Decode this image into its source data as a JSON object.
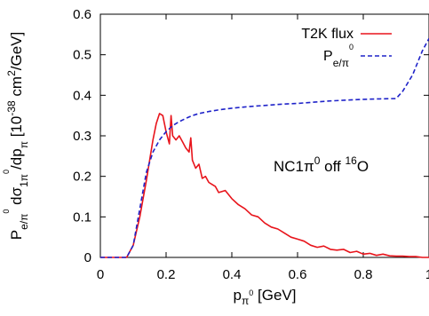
{
  "chart_data": {
    "type": "line",
    "xlabel": "p_{π⁰} [GeV]",
    "ylabel": "P_{e/π⁰} dσ_{1π⁰}/dp_π [10⁻³⁸ cm²/GeV]",
    "xlim": [
      0,
      1
    ],
    "ylim": [
      0,
      0.6
    ],
    "xticks": [
      "0",
      "0.2",
      "0.4",
      "0.6",
      "0.8",
      "1"
    ],
    "yticks": [
      "0",
      "0.1",
      "0.2",
      "0.3",
      "0.4",
      "0.5",
      "0.6"
    ],
    "grid": false,
    "legend_position": "top-right",
    "annotation": "NC1π⁰ off ¹⁶O",
    "series": [
      {
        "name": "T2K flux",
        "color": "#e8141b",
        "style": "solid",
        "x": [
          0.0,
          0.08,
          0.1,
          0.12,
          0.14,
          0.15,
          0.16,
          0.17,
          0.18,
          0.19,
          0.2,
          0.21,
          0.215,
          0.22,
          0.23,
          0.24,
          0.25,
          0.26,
          0.27,
          0.275,
          0.28,
          0.29,
          0.3,
          0.31,
          0.32,
          0.33,
          0.34,
          0.35,
          0.36,
          0.38,
          0.4,
          0.42,
          0.44,
          0.46,
          0.48,
          0.5,
          0.52,
          0.54,
          0.56,
          0.58,
          0.6,
          0.62,
          0.64,
          0.66,
          0.68,
          0.7,
          0.72,
          0.74,
          0.76,
          0.78,
          0.8,
          0.82,
          0.84,
          0.86,
          0.88,
          0.9,
          0.92,
          0.94,
          0.96,
          0.98,
          1.0
        ],
        "y": [
          0.0,
          0.0,
          0.03,
          0.1,
          0.19,
          0.24,
          0.29,
          0.33,
          0.355,
          0.35,
          0.31,
          0.28,
          0.35,
          0.3,
          0.29,
          0.3,
          0.285,
          0.27,
          0.26,
          0.295,
          0.24,
          0.22,
          0.23,
          0.195,
          0.2,
          0.185,
          0.18,
          0.175,
          0.16,
          0.165,
          0.145,
          0.13,
          0.12,
          0.105,
          0.1,
          0.085,
          0.075,
          0.07,
          0.06,
          0.05,
          0.045,
          0.04,
          0.03,
          0.025,
          0.028,
          0.02,
          0.018,
          0.02,
          0.012,
          0.015,
          0.008,
          0.01,
          0.005,
          0.008,
          0.004,
          0.003,
          0.003,
          0.002,
          0.002,
          0.0,
          0.0
        ]
      },
      {
        "name": "P_{e/π⁰}",
        "color": "#1f23c9",
        "style": "dashed",
        "x": [
          0.0,
          0.08,
          0.1,
          0.12,
          0.14,
          0.16,
          0.18,
          0.2,
          0.22,
          0.24,
          0.26,
          0.28,
          0.3,
          0.33,
          0.36,
          0.4,
          0.45,
          0.5,
          0.55,
          0.6,
          0.65,
          0.7,
          0.75,
          0.8,
          0.85,
          0.9,
          0.92,
          0.95,
          0.98,
          1.0
        ],
        "y": [
          0.0,
          0.0,
          0.03,
          0.12,
          0.21,
          0.26,
          0.29,
          0.31,
          0.325,
          0.335,
          0.343,
          0.35,
          0.355,
          0.36,
          0.364,
          0.368,
          0.372,
          0.375,
          0.378,
          0.38,
          0.383,
          0.386,
          0.388,
          0.39,
          0.391,
          0.392,
          0.41,
          0.45,
          0.51,
          0.54
        ]
      }
    ]
  }
}
